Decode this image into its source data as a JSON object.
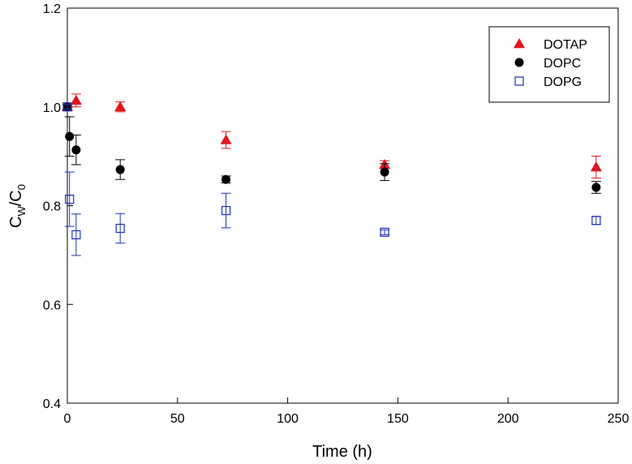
{
  "chart_data": {
    "type": "scatter",
    "title": "",
    "xlabel": "Time (h)",
    "ylabel": {
      "main": "C",
      "sub1": "W",
      "sep": "/C",
      "sub2": "0"
    },
    "xlim": [
      0,
      250
    ],
    "ylim": [
      0.4,
      1.2
    ],
    "xticks": [
      0,
      50,
      100,
      150,
      200,
      250
    ],
    "yticks": [
      0.4,
      0.6,
      0.8,
      1.0,
      1.2
    ],
    "xtick_labels": [
      "0",
      "50",
      "100",
      "150",
      "200",
      "250"
    ],
    "ytick_labels": [
      "0.4",
      "0.6",
      "0.8",
      "1.0",
      "1.2"
    ],
    "grid": false,
    "legend_position": "top-right",
    "series": [
      {
        "name": "DOTAP",
        "marker": "triangle-filled",
        "color": "#e0161c",
        "points": [
          {
            "x": 0,
            "y": 1.0,
            "err": 0.008
          },
          {
            "x": 4,
            "y": 1.013,
            "err": 0.013
          },
          {
            "x": 24,
            "y": 1.0,
            "err": 0.01
          },
          {
            "x": 72,
            "y": 0.933,
            "err": 0.017
          },
          {
            "x": 144,
            "y": 0.883,
            "err": 0.008
          },
          {
            "x": 240,
            "y": 0.878,
            "err": 0.022
          }
        ]
      },
      {
        "name": "DOPC",
        "marker": "circle-filled",
        "color": "#000000",
        "points": [
          {
            "x": 0,
            "y": 1.0,
            "err": 0.005
          },
          {
            "x": 1,
            "y": 0.94,
            "err": 0.04
          },
          {
            "x": 4,
            "y": 0.913,
            "err": 0.03
          },
          {
            "x": 24,
            "y": 0.873,
            "err": 0.02
          },
          {
            "x": 72,
            "y": 0.853,
            "err": 0.007
          },
          {
            "x": 144,
            "y": 0.868,
            "err": 0.017
          },
          {
            "x": 240,
            "y": 0.837,
            "err": 0.012
          }
        ]
      },
      {
        "name": "DOPG",
        "marker": "square-open",
        "color": "#1f2fbf",
        "points": [
          {
            "x": 0,
            "y": 1.0,
            "err": 0.005
          },
          {
            "x": 1,
            "y": 0.813,
            "err": 0.055
          },
          {
            "x": 4,
            "y": 0.741,
            "err": 0.042
          },
          {
            "x": 24,
            "y": 0.754,
            "err": 0.03
          },
          {
            "x": 72,
            "y": 0.79,
            "err": 0.035
          },
          {
            "x": 144,
            "y": 0.746,
            "err": 0.005
          },
          {
            "x": 240,
            "y": 0.77,
            "err": 0.008
          }
        ]
      }
    ]
  }
}
